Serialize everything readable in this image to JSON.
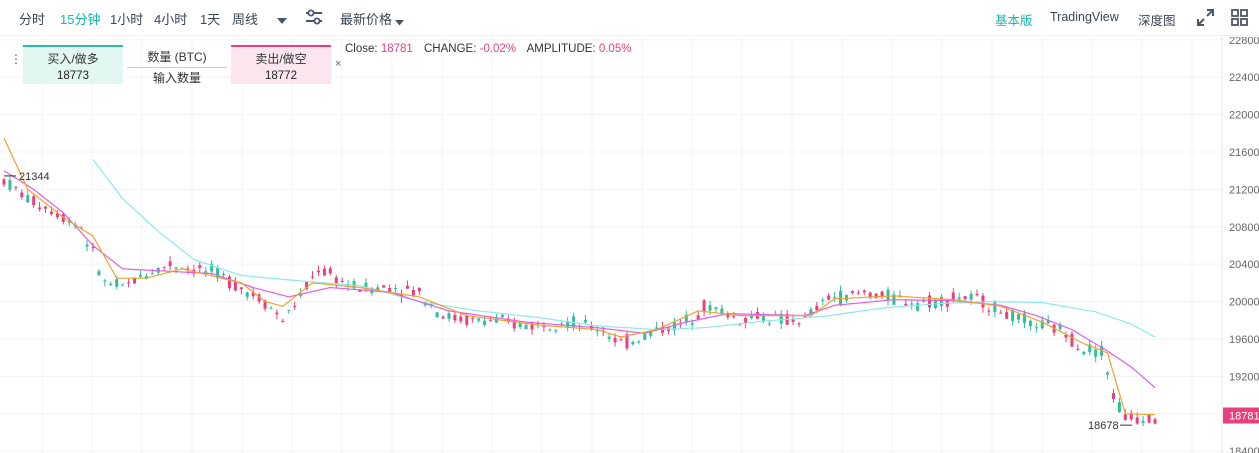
{
  "toolbar": {
    "timeframes": [
      "分时",
      "15分钟",
      "1小时",
      "4小时",
      "1天",
      "周线"
    ],
    "active_timeframe": "15分钟",
    "price_type": "最新价格",
    "tabs": [
      "基本版",
      "TradingView",
      "深度图"
    ],
    "active_tab": "基本版"
  },
  "trade": {
    "buy_label": "买入/做多",
    "buy_price": "18773",
    "qty_label": "数量 (BTC)",
    "qty_placeholder": "输入数量",
    "sell_label": "卖出/做空",
    "sell_price": "18772",
    "close_symbol": "×"
  },
  "stats": {
    "close_label": "Close:",
    "close_value": "18781",
    "change_label": "CHANGE:",
    "change_value": "-0.02%",
    "amplitude_label": "AMPLITUDE:",
    "amplitude_value": "0.05%"
  },
  "colors": {
    "up": "#2fbf9e",
    "down": "#e8407e",
    "accent": "#17b8b0",
    "ma_short": "#f0a232",
    "ma_mid": "#e35ee0",
    "ma_long": "#8fe8ee"
  },
  "chart_data": {
    "type": "candlestick",
    "y_ticks": [
      18400,
      18800,
      19200,
      19600,
      20000,
      20400,
      20800,
      21200,
      21600,
      22000,
      22400,
      22800
    ],
    "ylim": [
      18380,
      22830
    ],
    "last_price": "18781",
    "high_marker": "21344",
    "low_marker": "18678",
    "price_path": [
      [
        0,
        21300
      ],
      [
        4,
        21100
      ],
      [
        9,
        20950
      ],
      [
        13,
        20800
      ],
      [
        17,
        20200
      ],
      [
        20,
        20150
      ],
      [
        24,
        20300
      ],
      [
        28,
        20400
      ],
      [
        32,
        20350
      ],
      [
        36,
        20300
      ],
      [
        40,
        20150
      ],
      [
        44,
        20000
      ],
      [
        47,
        19800
      ],
      [
        50,
        20050
      ],
      [
        53,
        20350
      ],
      [
        56,
        20250
      ],
      [
        59,
        20150
      ],
      [
        62,
        20150
      ],
      [
        66,
        20150
      ],
      [
        70,
        20100
      ],
      [
        74,
        19850
      ],
      [
        78,
        19800
      ],
      [
        82,
        19800
      ],
      [
        86,
        19750
      ],
      [
        90,
        19750
      ],
      [
        94,
        19800
      ],
      [
        97,
        19750
      ],
      [
        101,
        19700
      ],
      [
        104,
        19550
      ],
      [
        107,
        19600
      ],
      [
        110,
        19700
      ],
      [
        114,
        19750
      ],
      [
        118,
        19950
      ],
      [
        121,
        19900
      ],
      [
        124,
        19800
      ],
      [
        127,
        19850
      ],
      [
        131,
        19800
      ],
      [
        135,
        19800
      ],
      [
        139,
        20050
      ],
      [
        142,
        20050
      ],
      [
        145,
        20100
      ],
      [
        149,
        20050
      ],
      [
        153,
        20000
      ],
      [
        157,
        20000
      ],
      [
        161,
        20050
      ],
      [
        165,
        20000
      ],
      [
        168,
        19900
      ],
      [
        171,
        19800
      ],
      [
        174,
        19750
      ],
      [
        178,
        19700
      ],
      [
        182,
        19500
      ],
      [
        185,
        19480
      ],
      [
        187,
        19000
      ],
      [
        189,
        18760
      ],
      [
        191,
        18760
      ],
      [
        194,
        18780
      ]
    ],
    "ma_short": [
      [
        0,
        21750
      ],
      [
        4,
        21200
      ],
      [
        10,
        20900
      ],
      [
        15,
        20700
      ],
      [
        19,
        20250
      ],
      [
        24,
        20250
      ],
      [
        30,
        20350
      ],
      [
        40,
        20200
      ],
      [
        44,
        20000
      ],
      [
        47,
        19950
      ],
      [
        52,
        20200
      ],
      [
        60,
        20150
      ],
      [
        70,
        20050
      ],
      [
        78,
        19850
      ],
      [
        90,
        19750
      ],
      [
        100,
        19700
      ],
      [
        104,
        19620
      ],
      [
        110,
        19700
      ],
      [
        117,
        19900
      ],
      [
        124,
        19850
      ],
      [
        136,
        19850
      ],
      [
        140,
        20030
      ],
      [
        150,
        20060
      ],
      [
        160,
        20020
      ],
      [
        168,
        19950
      ],
      [
        175,
        19780
      ],
      [
        182,
        19550
      ],
      [
        186,
        19450
      ],
      [
        189,
        18800
      ],
      [
        194,
        18790
      ]
    ],
    "ma_mid": [
      [
        0,
        21400
      ],
      [
        5,
        21200
      ],
      [
        10,
        20950
      ],
      [
        15,
        20600
      ],
      [
        20,
        20350
      ],
      [
        26,
        20330
      ],
      [
        35,
        20300
      ],
      [
        42,
        20150
      ],
      [
        48,
        20050
      ],
      [
        55,
        20150
      ],
      [
        65,
        20100
      ],
      [
        75,
        19900
      ],
      [
        88,
        19780
      ],
      [
        100,
        19720
      ],
      [
        108,
        19660
      ],
      [
        115,
        19780
      ],
      [
        122,
        19870
      ],
      [
        135,
        19850
      ],
      [
        140,
        19960
      ],
      [
        150,
        20020
      ],
      [
        160,
        20010
      ],
      [
        168,
        19960
      ],
      [
        174,
        19850
      ],
      [
        180,
        19700
      ],
      [
        186,
        19470
      ],
      [
        190,
        19300
      ],
      [
        194,
        19080
      ]
    ],
    "ma_long": [
      [
        15,
        21520
      ],
      [
        20,
        21100
      ],
      [
        26,
        20750
      ],
      [
        32,
        20450
      ],
      [
        40,
        20280
      ],
      [
        50,
        20220
      ],
      [
        60,
        20170
      ],
      [
        70,
        20000
      ],
      [
        80,
        19900
      ],
      [
        90,
        19830
      ],
      [
        100,
        19740
      ],
      [
        110,
        19700
      ],
      [
        118,
        19720
      ],
      [
        128,
        19790
      ],
      [
        138,
        19840
      ],
      [
        148,
        19930
      ],
      [
        158,
        19980
      ],
      [
        166,
        20000
      ],
      [
        175,
        19990
      ],
      [
        184,
        19890
      ],
      [
        190,
        19760
      ],
      [
        194,
        19620
      ]
    ]
  }
}
